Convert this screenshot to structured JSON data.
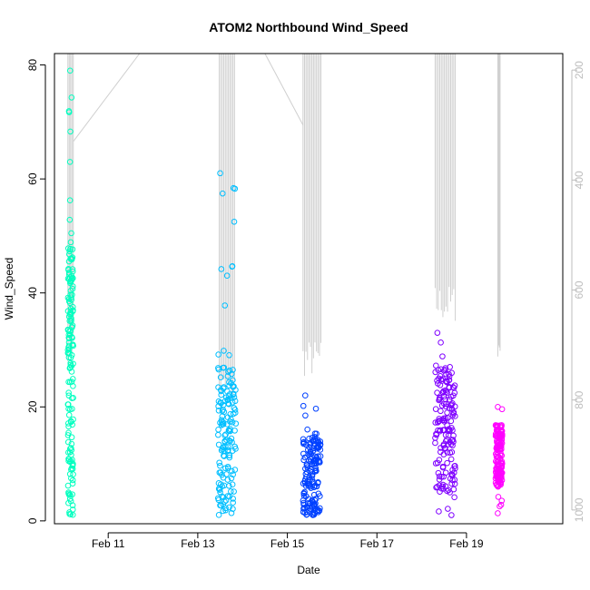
{
  "chart_data": {
    "type": "scatter",
    "title": "ATOM2 Northbound Wind_Speed",
    "xlabel": "Date",
    "ylabel": "Wind_Speed",
    "x_ticks": [
      "Feb 11",
      "Feb 13",
      "Feb 15",
      "Feb 17",
      "Feb 19"
    ],
    "x_tick_values": [
      11,
      13,
      15,
      17,
      19
    ],
    "xlim": [
      9.8,
      21.15
    ],
    "ylim": [
      -0.5,
      82
    ],
    "y_ticks": [
      0,
      20,
      40,
      60,
      80
    ],
    "y2_ticks": [
      200,
      400,
      600,
      800,
      1000
    ],
    "y2lim": [
      1025,
      170
    ],
    "grid": false,
    "marker": "open circle",
    "series": [
      {
        "color": "#00ffbf",
        "x_range": [
          10.1,
          10.22
        ],
        "y_range": [
          1,
          79
        ],
        "bulk_range": [
          1,
          48
        ]
      },
      {
        "color": "#00bfff",
        "x_range": [
          13.45,
          13.85
        ],
        "y_range": [
          1,
          61
        ],
        "bulk_range": [
          1,
          27
        ]
      },
      {
        "color": "#0040ff",
        "x_range": [
          15.35,
          15.75
        ],
        "y_range": [
          1,
          22
        ],
        "bulk_range": [
          1,
          15
        ]
      },
      {
        "color": "#7f00ff",
        "x_range": [
          18.3,
          18.75
        ],
        "y_range": [
          1,
          33
        ],
        "bulk_range": [
          5,
          27
        ]
      },
      {
        "color": "#ff00ff",
        "x_range": [
          19.65,
          19.8
        ],
        "y_range": [
          1,
          20
        ],
        "bulk_range": [
          6,
          17
        ]
      }
    ],
    "pressure_profile": {
      "color": "#cfcfcf",
      "axis": "right",
      "segments": [
        {
          "x_range": [
            10.1,
            10.22
          ],
          "top": 170,
          "bottom": 730
        },
        {
          "x_range": [
            13.48,
            13.82
          ],
          "top": 170,
          "bottom": 815
        },
        {
          "x_range": [
            15.35,
            15.75
          ],
          "top": 170,
          "bottom": 760
        },
        {
          "x_range": [
            18.3,
            18.75
          ],
          "top": 170,
          "bottom": 660
        },
        {
          "x_range": [
            19.7,
            19.75
          ],
          "top": 170,
          "bottom": 740
        }
      ],
      "connectors": [
        {
          "x": [
            10.22,
            11.7
          ],
          "y": [
            330,
            170
          ]
        },
        {
          "x": [
            14.5,
            15.35
          ],
          "y": [
            170,
            300
          ]
        }
      ]
    }
  }
}
